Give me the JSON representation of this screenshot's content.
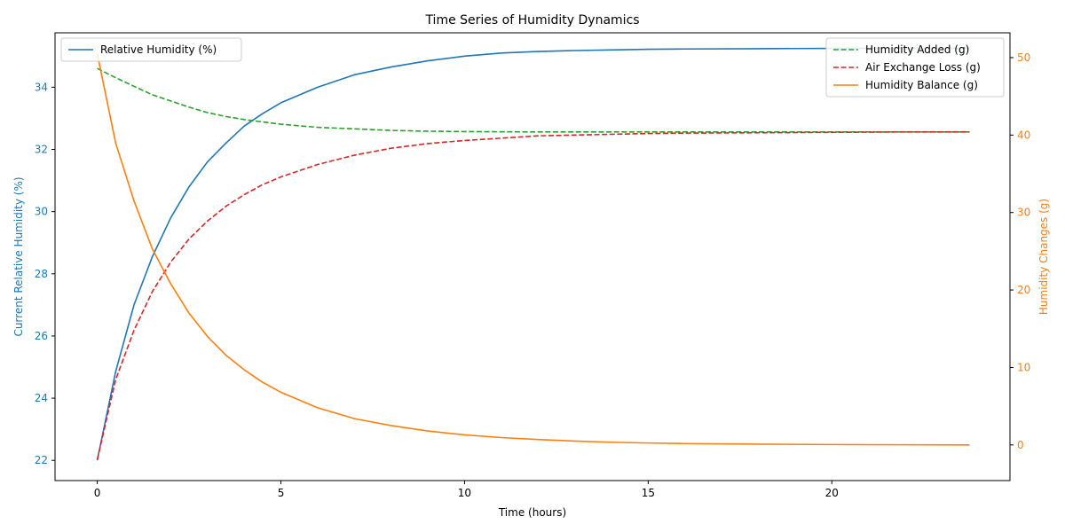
{
  "chart_data": {
    "type": "line",
    "title": "Time Series of Humidity Dynamics",
    "xlabel": "Time (hours)",
    "ylabel_left": "Current Relative Humidity (%)",
    "ylabel_right": "Humidity Changes (g)",
    "xlim": [
      -1.15,
      24.85
    ],
    "ylim_left": [
      21.35,
      35.75
    ],
    "ylim_right": [
      -4.6,
      53.2
    ],
    "xticks": [
      0,
      5,
      10,
      15,
      20
    ],
    "yticks_left": [
      22,
      24,
      26,
      28,
      30,
      32,
      34
    ],
    "yticks_right": [
      0,
      10,
      20,
      30,
      40,
      50
    ],
    "grid": false,
    "legend_left": "upper-left",
    "legend_right": "upper-right",
    "x": [
      0,
      0.5,
      1,
      1.5,
      2,
      2.5,
      3,
      3.5,
      4,
      4.5,
      5,
      6,
      7,
      8,
      9,
      10,
      11,
      12,
      13,
      14,
      15,
      16,
      18,
      20,
      22,
      23.75
    ],
    "series": [
      {
        "name": "Relative Humidity (%)",
        "axis": "left",
        "color": "#1f77b4",
        "dash": "solid",
        "values": [
          22.0,
          24.85,
          27.0,
          28.55,
          29.8,
          30.8,
          31.6,
          32.2,
          32.75,
          33.15,
          33.5,
          34.0,
          34.4,
          34.65,
          34.85,
          35.0,
          35.1,
          35.15,
          35.18,
          35.2,
          35.22,
          35.23,
          35.24,
          35.25,
          35.25,
          35.25
        ]
      },
      {
        "name": "Humidity Added (g)",
        "axis": "right",
        "color": "#2ca02c",
        "dash": "dashed",
        "values": [
          48.6,
          47.4,
          46.3,
          45.2,
          44.4,
          43.6,
          42.9,
          42.4,
          42.0,
          41.7,
          41.4,
          41.0,
          40.8,
          40.6,
          40.5,
          40.45,
          40.42,
          40.4,
          40.4,
          40.4,
          40.4,
          40.4,
          40.4,
          40.4,
          40.4,
          40.4
        ]
      },
      {
        "name": "Air Exchange Loss (g)",
        "axis": "right",
        "color": "#d62728",
        "dash": "dashed",
        "values": [
          -1.9,
          8.4,
          14.8,
          19.8,
          23.6,
          26.6,
          28.9,
          30.8,
          32.3,
          33.6,
          34.6,
          36.2,
          37.4,
          38.3,
          38.9,
          39.3,
          39.6,
          39.9,
          40.0,
          40.1,
          40.2,
          40.25,
          40.3,
          40.35,
          40.4,
          40.4
        ]
      },
      {
        "name": "Humidity Balance (g)",
        "axis": "right",
        "color": "#ff7f0e",
        "dash": "solid",
        "values": [
          50.5,
          39.0,
          31.5,
          25.3,
          20.8,
          17.0,
          14.0,
          11.6,
          9.7,
          8.1,
          6.8,
          4.8,
          3.4,
          2.5,
          1.8,
          1.3,
          0.95,
          0.7,
          0.5,
          0.35,
          0.25,
          0.18,
          0.1,
          0.05,
          0.02,
          0.0
        ]
      }
    ]
  }
}
